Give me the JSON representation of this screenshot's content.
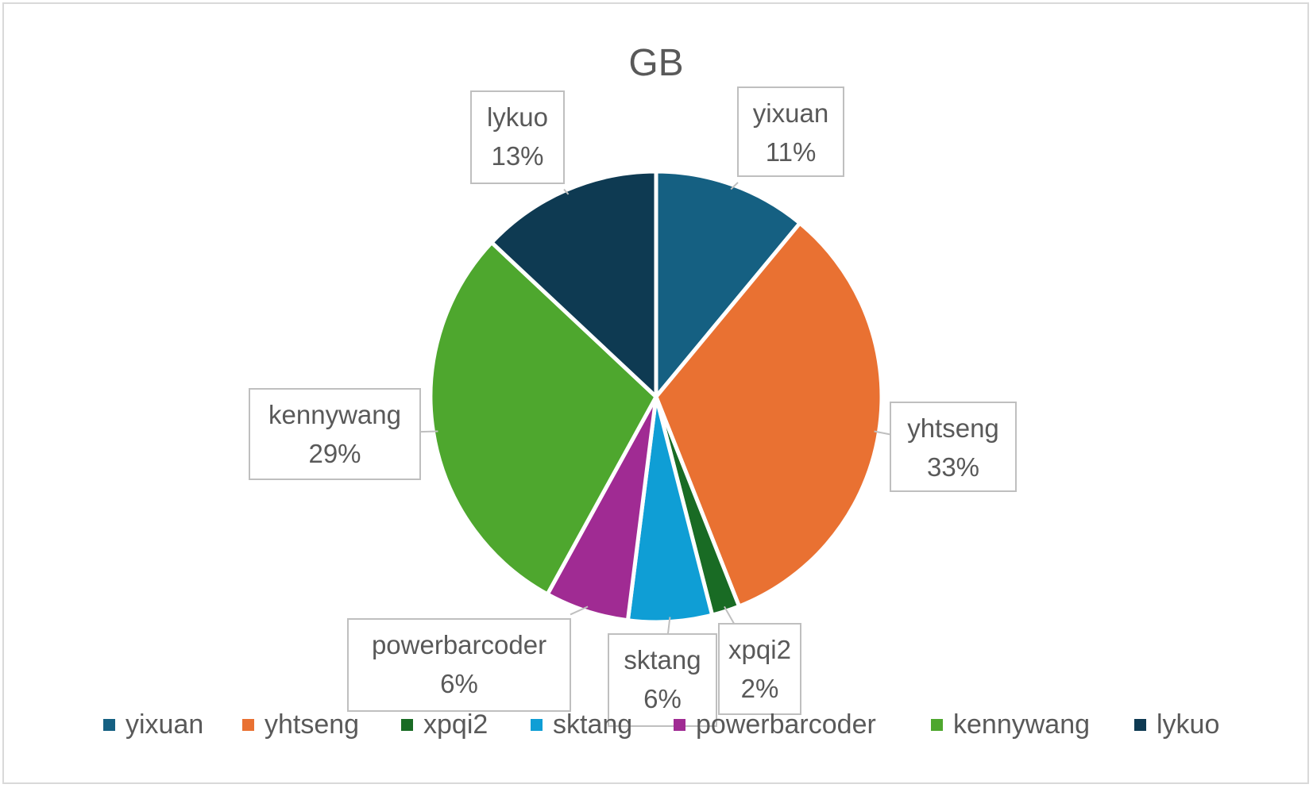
{
  "chart_data": {
    "type": "pie",
    "title": "GB",
    "categories": [
      "yixuan",
      "yhtseng",
      "xpqi2",
      "sktang",
      "powerbarcoder",
      "kennywang",
      "lykuo"
    ],
    "values": [
      11,
      33,
      2,
      6,
      6,
      29,
      13
    ],
    "data_labels": [
      "11%",
      "33%",
      "2%",
      "6%",
      "6%",
      "29%",
      "13%"
    ],
    "colors": [
      "#156082",
      "#E97132",
      "#196B24",
      "#0F9ED5",
      "#A02B93",
      "#4EA72E",
      "#0E3A52"
    ],
    "legend_position": "bottom"
  }
}
